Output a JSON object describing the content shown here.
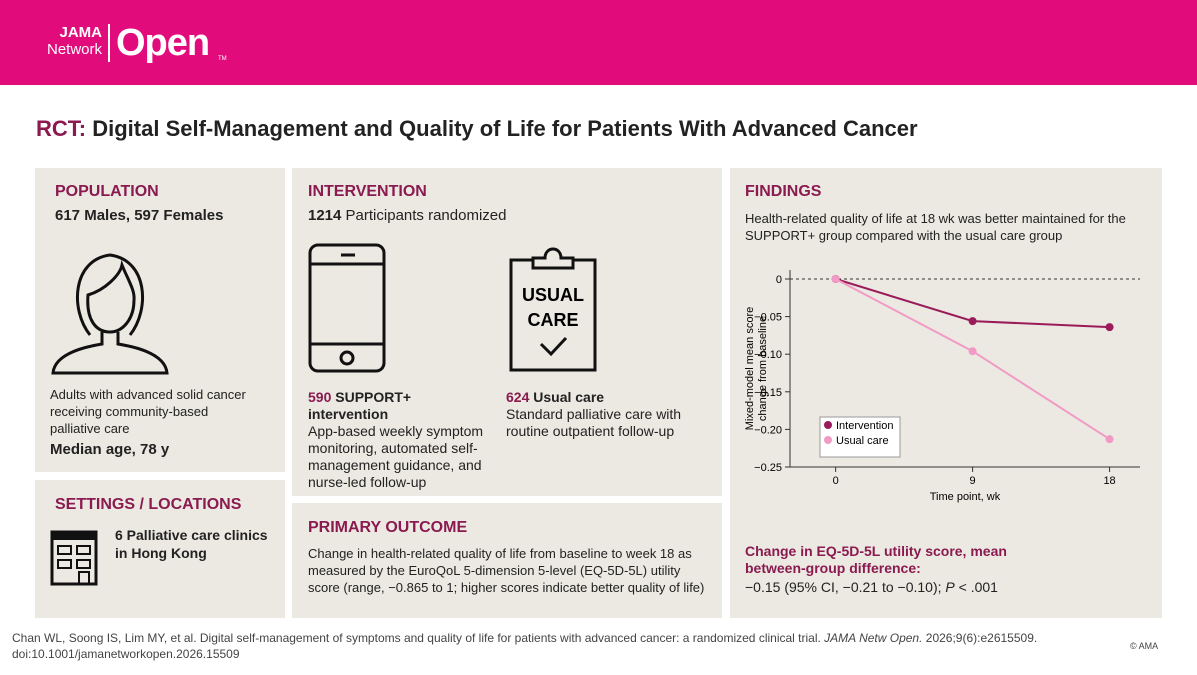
{
  "header": {
    "logo_jama": "JAMA",
    "logo_network": "Network",
    "logo_open": "Open",
    "logo_tm": "TM"
  },
  "title": {
    "prefix": "RCT:",
    "text": "Digital Self-Management and Quality of Life for Patients With Advanced Cancer"
  },
  "population": {
    "heading": "POPULATION",
    "summary": "617 Males, 597 Females",
    "description": "Adults with advanced solid cancer receiving community-based palliative care",
    "median_age": "Median age, 78 y"
  },
  "settings": {
    "heading": "SETTINGS / LOCATIONS",
    "text": "6 Palliative care clinics in Hong Kong"
  },
  "intervention": {
    "heading": "INTERVENTION",
    "randomized_number": "1214",
    "randomized_text": "Participants randomized",
    "clipboard_line1": "USUAL",
    "clipboard_line2": "CARE",
    "arms": [
      {
        "number": "590",
        "name": "SUPPORT+ intervention",
        "description": "App-based weekly symptom monitoring, automated self-management guidance, and nurse-led follow-up"
      },
      {
        "number": "624",
        "name": "Usual care",
        "description": "Standard palliative care with routine outpatient follow-up"
      }
    ]
  },
  "primary_outcome": {
    "heading": "PRIMARY OUTCOME",
    "text": "Change in health-related quality of life from baseline to week 18 as measured by the EuroQoL 5-dimension 5-level (EQ-5D-5L) utility score (range, −0.865 to 1; higher scores indicate better quality of life)"
  },
  "findings": {
    "heading": "FINDINGS",
    "text": "Health-related quality of life at 18 wk was better maintained for the SUPPORT+ group compared with the usual care group",
    "result_heading": "Change in EQ-5D-5L utility score, mean between-group difference:",
    "result_text": "−0.15 (95% CI, −0.21 to −0.10); ",
    "result_p": "P",
    "result_p_text": " < .001"
  },
  "footer": {
    "citation": "Chan WL, Soong IS, Lim MY, et al. Digital self-management of symptoms and quality of life for patients with advanced cancer: a randomized clinical trial. ",
    "journal": "JAMA Netw Open.",
    "details": " 2026;9(6):e2615509. doi:10.1001/jamanetworkopen.2026.15509",
    "copyright": "© AMA"
  },
  "chart_data": {
    "type": "line",
    "xlabel": "Time point, wk",
    "ylabel": [
      "Mixed-model mean score",
      "change from baseline"
    ],
    "x": [
      0,
      9,
      18
    ],
    "xlim": [
      -3,
      20
    ],
    "xticks": [
      0,
      9,
      18
    ],
    "ylim": [
      -0.25,
      0
    ],
    "yticks": [
      {
        "value": 0,
        "label": "0"
      },
      {
        "value": -0.05,
        "label": "−0.05"
      },
      {
        "value": -0.1,
        "label": "−0.10"
      },
      {
        "value": -0.15,
        "label": "−0.15"
      },
      {
        "value": -0.2,
        "label": "−0.20"
      },
      {
        "value": -0.25,
        "label": "−0.25"
      }
    ],
    "legend": "lower left",
    "series": [
      {
        "name": "Intervention",
        "color": "#9b1b5a",
        "values": [
          0,
          -0.056,
          -0.064
        ]
      },
      {
        "name": "Usual care",
        "color": "#f29ac6",
        "values": [
          0,
          -0.096,
          -0.213
        ]
      }
    ]
  }
}
